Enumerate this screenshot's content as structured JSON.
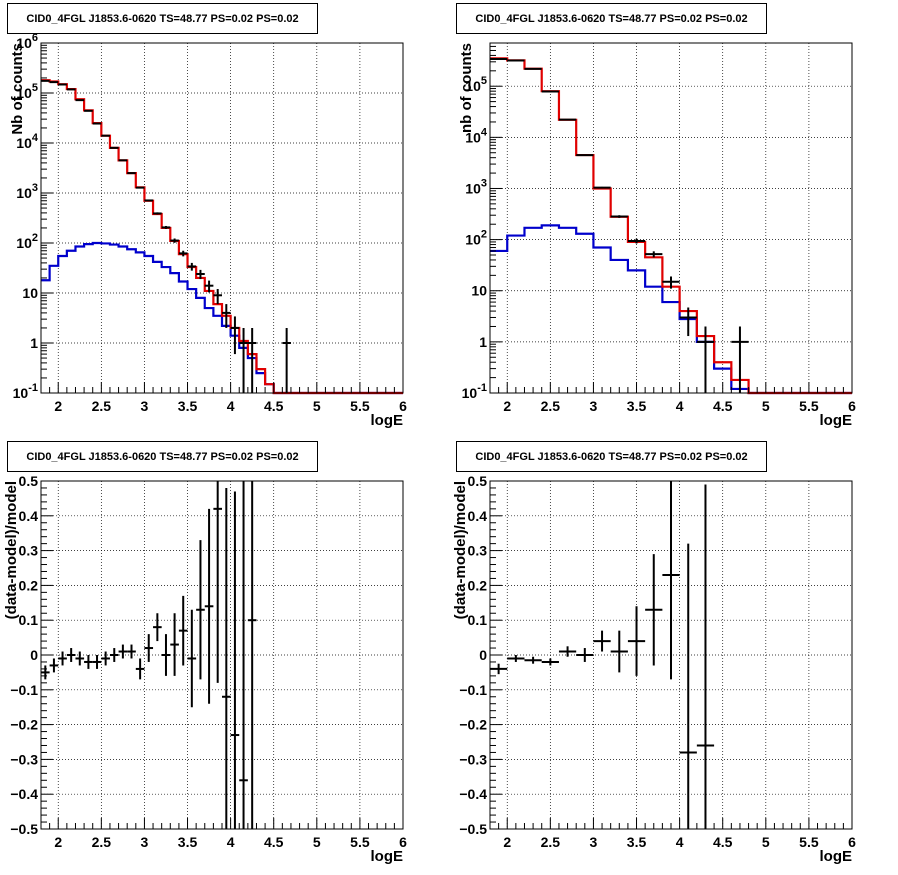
{
  "colors": {
    "data": "#000000",
    "model": "#e00000",
    "component": "#0000cc"
  },
  "chart_data": [
    {
      "type": "line",
      "title": "CID0_4FGL J1853.6-0620 TS=48.77 PS=0.02 PS=0.02",
      "xlabel": "logE",
      "ylabel": "Nb of counts",
      "xlim": [
        1.8,
        6.0
      ],
      "ylim": [
        0.1,
        1000000
      ],
      "log_y": true,
      "grid": true,
      "x_ticks": [
        "2",
        "2.5",
        "3",
        "3.5",
        "4",
        "4.5",
        "5",
        "5.5",
        "6"
      ],
      "y_ticks": [
        "10^-1",
        "1",
        "10",
        "10^2",
        "10^3",
        "10^4",
        "10^5",
        "10^6"
      ],
      "bin_width": 0.1,
      "series": [
        {
          "x": [
            1.85,
            1.95,
            2.05,
            2.15,
            2.25,
            2.35,
            2.45,
            2.55,
            2.65,
            2.75,
            2.85,
            2.95,
            3.05,
            3.15,
            3.25,
            3.35,
            3.45,
            3.55,
            3.65,
            3.75,
            3.85,
            3.95,
            4.05,
            4.15,
            4.25,
            4.35,
            4.45,
            4.55,
            4.65,
            4.75,
            4.85,
            4.95,
            5.05,
            5.15,
            5.25,
            5.35,
            5.45,
            5.55,
            5.65,
            5.75,
            5.85,
            5.95
          ],
          "values": [
            180000,
            170000,
            150000,
            120000,
            75000,
            45000,
            25000,
            14000,
            8000,
            4500,
            2500,
            1300,
            700,
            380,
            200,
            110,
            60,
            33,
            20,
            11,
            6,
            3.5,
            2,
            1.1,
            0.6,
            0.3,
            0.15,
            0.1,
            0.1,
            0.1,
            0.1,
            0.1,
            0.1,
            0.1,
            0.1,
            0.1,
            0.1,
            0.1,
            0.1,
            0.1,
            0.1,
            0.1
          ]
        },
        {
          "x": [
            1.85,
            1.95,
            2.05,
            2.15,
            2.25,
            2.35,
            2.45,
            2.55,
            2.65,
            2.75,
            2.85,
            2.95,
            3.05,
            3.15,
            3.25,
            3.35,
            3.45,
            3.55,
            3.65,
            3.75,
            3.85,
            3.95,
            4.05,
            4.15,
            4.25,
            4.35,
            4.45,
            4.55,
            4.65,
            4.75,
            4.85,
            4.95,
            5.05,
            5.15,
            5.25,
            5.35,
            5.45,
            5.55,
            5.65,
            5.75,
            5.85,
            5.95
          ],
          "values": [
            18,
            35,
            55,
            70,
            85,
            95,
            100,
            98,
            93,
            85,
            75,
            65,
            55,
            42,
            33,
            25,
            17,
            12,
            8,
            5,
            3.5,
            2.2,
            1.4,
            0.8,
            0.5,
            0.25,
            0.15,
            0.1,
            0.1,
            0.1,
            0.1,
            0.1,
            0.1,
            0.1,
            0.1,
            0.1,
            0.1,
            0.1,
            0.1,
            0.1,
            0.1,
            0.1
          ]
        },
        {
          "points": [
            {
              "x": 1.85,
              "y": 175000,
              "err": 500
            },
            {
              "x": 1.95,
              "y": 165000,
              "err": 500
            },
            {
              "x": 2.05,
              "y": 148000,
              "err": 500
            },
            {
              "x": 2.15,
              "y": 118000,
              "err": 400
            },
            {
              "x": 2.25,
              "y": 72000,
              "err": 300
            },
            {
              "x": 2.35,
              "y": 44000,
              "err": 200
            },
            {
              "x": 2.45,
              "y": 24500,
              "err": 150
            },
            {
              "x": 2.55,
              "y": 14000,
              "err": 120
            },
            {
              "x": 2.65,
              "y": 8000,
              "err": 90
            },
            {
              "x": 2.75,
              "y": 4500,
              "err": 70
            },
            {
              "x": 2.85,
              "y": 2500,
              "err": 50
            },
            {
              "x": 2.95,
              "y": 1280,
              "err": 36
            },
            {
              "x": 3.05,
              "y": 710,
              "err": 27
            },
            {
              "x": 3.15,
              "y": 390,
              "err": 20
            },
            {
              "x": 3.25,
              "y": 205,
              "err": 14
            },
            {
              "x": 3.35,
              "y": 112,
              "err": 11
            },
            {
              "x": 3.45,
              "y": 62,
              "err": 8
            },
            {
              "x": 3.55,
              "y": 34,
              "err": 6
            },
            {
              "x": 3.65,
              "y": 24,
              "err": 5
            },
            {
              "x": 3.75,
              "y": 14,
              "err": 3.7
            },
            {
              "x": 3.85,
              "y": 9,
              "err": 3
            },
            {
              "x": 3.95,
              "y": 4,
              "err": 2
            },
            {
              "x": 4.05,
              "y": 2,
              "err": 1.4
            },
            {
              "x": 4.15,
              "y": 1,
              "err": 1
            },
            {
              "x": 4.25,
              "y": 1,
              "err": 1
            },
            {
              "x": 4.65,
              "y": 1,
              "err": 1
            }
          ]
        }
      ]
    },
    {
      "type": "line",
      "title": "CID0_4FGL J1853.6-0620 TS=48.77 PS=0.02 PS=0.02",
      "xlabel": "logE",
      "ylabel": "nb of counts",
      "xlim": [
        1.8,
        6.0
      ],
      "ylim": [
        0.1,
        700000
      ],
      "log_y": true,
      "grid": true,
      "x_ticks": [
        "2",
        "2.5",
        "3",
        "3.5",
        "4",
        "4.5",
        "5",
        "5.5",
        "6"
      ],
      "y_ticks": [
        "10^-1",
        "1",
        "10",
        "10^2",
        "10^3",
        "10^4",
        "10^5"
      ],
      "bin_width": 0.2,
      "series": [
        {
          "x": [
            1.9,
            2.1,
            2.3,
            2.5,
            2.7,
            2.9,
            3.1,
            3.3,
            3.5,
            3.7,
            3.9,
            4.1,
            4.3,
            4.5,
            4.7,
            4.9,
            5.1,
            5.3,
            5.5,
            5.7,
            5.9
          ],
          "values": [
            350000,
            320000,
            220000,
            80000,
            22000,
            4500,
            1000,
            280,
            90,
            45,
            12,
            4,
            1.3,
            0.4,
            0.18,
            0.1,
            0.1,
            0.1,
            0.1,
            0.1,
            0.1
          ]
        },
        {
          "x": [
            1.9,
            2.1,
            2.3,
            2.5,
            2.7,
            2.9,
            3.1,
            3.3,
            3.5,
            3.7,
            3.9,
            4.1,
            4.3,
            4.5,
            4.7,
            4.9,
            5.1,
            5.3,
            5.5,
            5.7,
            5.9
          ],
          "values": [
            60,
            120,
            170,
            190,
            170,
            130,
            70,
            40,
            25,
            12,
            6,
            2.8,
            1.0,
            0.3,
            0.12,
            0.1,
            0.1,
            0.1,
            0.1,
            0.1,
            0.1
          ]
        },
        {
          "points": [
            {
              "x": 1.9,
              "y": 340000,
              "err": 600
            },
            {
              "x": 2.1,
              "y": 318000,
              "err": 560
            },
            {
              "x": 2.3,
              "y": 218000,
              "err": 470
            },
            {
              "x": 2.5,
              "y": 79000,
              "err": 280
            },
            {
              "x": 2.7,
              "y": 22200,
              "err": 150
            },
            {
              "x": 2.9,
              "y": 4500,
              "err": 67
            },
            {
              "x": 3.1,
              "y": 1040,
              "err": 32
            },
            {
              "x": 3.3,
              "y": 283,
              "err": 17
            },
            {
              "x": 3.5,
              "y": 94,
              "err": 10
            },
            {
              "x": 3.7,
              "y": 52,
              "err": 7
            },
            {
              "x": 3.9,
              "y": 15,
              "err": 4
            },
            {
              "x": 4.1,
              "y": 3,
              "err": 1.7
            },
            {
              "x": 4.3,
              "y": 1,
              "err": 1
            },
            {
              "x": 4.7,
              "y": 1,
              "err": 1
            }
          ]
        }
      ]
    },
    {
      "type": "scatter",
      "title": "CID0_4FGL J1853.6-0620 TS=48.77 PS=0.02 PS=0.02",
      "xlabel": "logE",
      "ylabel": "(data-model)/model",
      "xlim": [
        1.8,
        6.0
      ],
      "ylim": [
        -0.5,
        0.5
      ],
      "grid": true,
      "x_ticks": [
        "2",
        "2.5",
        "3",
        "3.5",
        "4",
        "4.5",
        "5",
        "5.5",
        "6"
      ],
      "y_ticks": [
        "-0.5",
        "-0.4",
        "-0.3",
        "-0.2",
        "-0.1",
        "0",
        "0.1",
        "0.2",
        "0.3",
        "0.4",
        "0.5"
      ],
      "bin_width": 0.1,
      "series": [
        {
          "points": [
            {
              "x": 1.85,
              "y": -0.05,
              "err": 0.02
            },
            {
              "x": 1.95,
              "y": -0.03,
              "err": 0.02
            },
            {
              "x": 2.05,
              "y": -0.01,
              "err": 0.02
            },
            {
              "x": 2.15,
              "y": 0.0,
              "err": 0.02
            },
            {
              "x": 2.25,
              "y": -0.01,
              "err": 0.02
            },
            {
              "x": 2.35,
              "y": -0.02,
              "err": 0.02
            },
            {
              "x": 2.45,
              "y": -0.02,
              "err": 0.02
            },
            {
              "x": 2.55,
              "y": -0.01,
              "err": 0.02
            },
            {
              "x": 2.65,
              "y": 0.0,
              "err": 0.02
            },
            {
              "x": 2.75,
              "y": 0.01,
              "err": 0.02
            },
            {
              "x": 2.85,
              "y": 0.01,
              "err": 0.02
            },
            {
              "x": 2.95,
              "y": -0.04,
              "err": 0.03
            },
            {
              "x": 3.05,
              "y": 0.02,
              "err": 0.04
            },
            {
              "x": 3.15,
              "y": 0.08,
              "err": 0.04
            },
            {
              "x": 3.25,
              "y": 0.0,
              "err": 0.06
            },
            {
              "x": 3.35,
              "y": 0.03,
              "err": 0.09
            },
            {
              "x": 3.45,
              "y": 0.07,
              "err": 0.1
            },
            {
              "x": 3.55,
              "y": -0.01,
              "err": 0.14
            },
            {
              "x": 3.65,
              "y": 0.13,
              "err": 0.2
            },
            {
              "x": 3.75,
              "y": 0.14,
              "err": 0.28
            },
            {
              "x": 3.85,
              "y": 0.42,
              "err": 0.5
            },
            {
              "x": 3.95,
              "y": -0.12,
              "err": 0.6
            },
            {
              "x": 4.05,
              "y": -0.23,
              "err": 0.7
            },
            {
              "x": 4.15,
              "y": -0.36,
              "err": 0.9
            },
            {
              "x": 4.25,
              "y": 0.1,
              "err": 1.0
            }
          ]
        }
      ]
    },
    {
      "type": "scatter",
      "title": "CID0_4FGL J1853.6-0620 TS=48.77 PS=0.02 PS=0.02",
      "xlabel": "logE",
      "ylabel": "(data-model)/model",
      "xlim": [
        1.8,
        6.0
      ],
      "ylim": [
        -0.5,
        0.5
      ],
      "grid": true,
      "x_ticks": [
        "2",
        "2.5",
        "3",
        "3.5",
        "4",
        "4.5",
        "5",
        "5.5",
        "6"
      ],
      "y_ticks": [
        "-0.5",
        "-0.4",
        "-0.3",
        "-0.2",
        "-0.1",
        "0",
        "0.1",
        "0.2",
        "0.3",
        "0.4",
        "0.5"
      ],
      "bin_width": 0.2,
      "series": [
        {
          "points": [
            {
              "x": 1.9,
              "y": -0.04,
              "err": 0.015
            },
            {
              "x": 2.1,
              "y": -0.01,
              "err": 0.01
            },
            {
              "x": 2.3,
              "y": -0.015,
              "err": 0.01
            },
            {
              "x": 2.5,
              "y": -0.02,
              "err": 0.01
            },
            {
              "x": 2.7,
              "y": 0.01,
              "err": 0.015
            },
            {
              "x": 2.9,
              "y": 0.0,
              "err": 0.02
            },
            {
              "x": 3.1,
              "y": 0.04,
              "err": 0.03
            },
            {
              "x": 3.3,
              "y": 0.01,
              "err": 0.06
            },
            {
              "x": 3.5,
              "y": 0.04,
              "err": 0.1
            },
            {
              "x": 3.7,
              "y": 0.13,
              "err": 0.16
            },
            {
              "x": 3.9,
              "y": 0.23,
              "err": 0.3
            },
            {
              "x": 4.1,
              "y": -0.28,
              "err": 0.6
            },
            {
              "x": 4.3,
              "y": -0.26,
              "err": 0.75
            }
          ]
        }
      ]
    }
  ]
}
